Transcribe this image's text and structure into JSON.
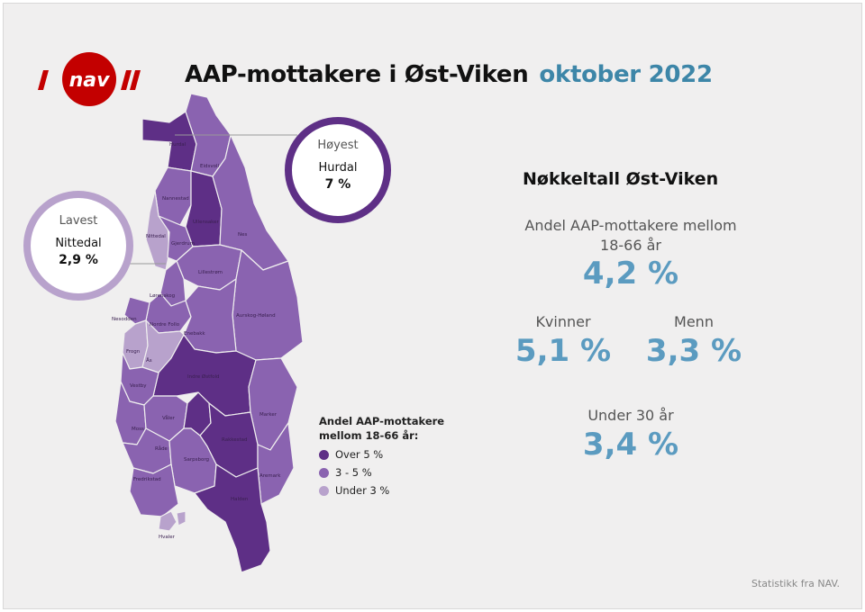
{
  "header": {
    "logo_text": "nav",
    "title": "AAP-mottakere i Øst-Viken",
    "date": "oktober 2022"
  },
  "colors": {
    "over5": "#5e2f86",
    "mid": "#8a63b0",
    "under3": "#b8a2cc",
    "brand_red": "#c30000",
    "accent_blue": "#5b9bc0"
  },
  "callouts": {
    "highest": {
      "label": "Høyest",
      "municipality": "Hurdal",
      "value": "7 %"
    },
    "lowest": {
      "label": "Lavest",
      "municipality": "Nittedal",
      "value": "2,9 %"
    }
  },
  "map_labels": {
    "hurdal": "Hurdal",
    "eidsvoll": "Eidsvoll",
    "nannestad": "Nannestad",
    "ullensaker": "Ullensaker",
    "nes": "Nes",
    "nittedal": "Nittedal",
    "gjerdrum": "Gjerdrum",
    "lillestrom": "Lillestrøm",
    "lorenskog": "Lørenskog",
    "aurskog": "Aurskog-Høland",
    "nordre_follo": "Nordre Follo",
    "nesodden": "Nesodden",
    "frogn": "Frogn",
    "as": "Ås",
    "enebakk": "Enebakk",
    "indre_ostfold": "Indre Østfold",
    "vestby": "Vestby",
    "moss": "Moss",
    "vaaler": "Våler",
    "marker": "Marker",
    "rakkestad": "Rakkestad",
    "rade": "Råde",
    "sarpsborg": "Sarpsborg",
    "fredrikstad": "Fredrikstad",
    "aremark": "Aremark",
    "halden": "Halden",
    "hvaler": "Hvaler"
  },
  "legend": {
    "title": "Andel AAP-mottakere mellom 18-66 år:",
    "items": [
      "Over 5 %",
      "3 - 5 %",
      "Under 3 %"
    ]
  },
  "stats": {
    "heading": "Nøkkeltall Øst-Viken",
    "total_caption": "Andel AAP-mottakere mellom 18-66 år",
    "total_value": "4,2 %",
    "women_caption": "Kvinner",
    "women_value": "5,1 %",
    "men_caption": "Menn",
    "men_value": "3,3 %",
    "under30_caption": "Under 30 år",
    "under30_value": "3,4 %"
  },
  "footer": {
    "source": "Statistikk fra NAV."
  }
}
